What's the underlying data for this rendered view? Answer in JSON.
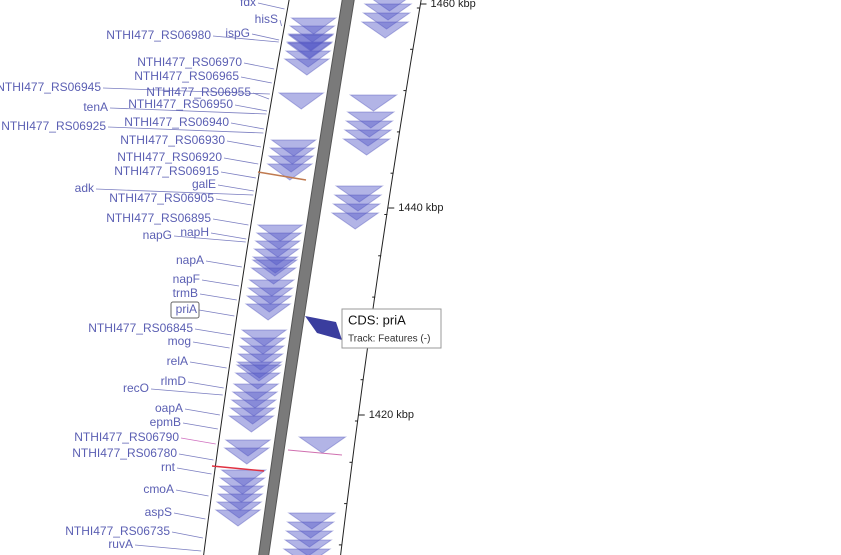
{
  "genes": [
    "fdx",
    "hisS",
    "NTHI477_RS06980",
    "ispG",
    "NTHI477_RS06970",
    "NTHI477_RS06965",
    "NTHI477_RS06945",
    "NTHI477_RS06955",
    "tenA",
    "NTHI477_RS06950",
    "NTHI477_RS06925",
    "NTHI477_RS06940",
    "NTHI477_RS06930",
    "NTHI477_RS06920",
    "NTHI477_RS06915",
    "adk",
    "galE",
    "NTHI477_RS06905",
    "NTHI477_RS06895",
    "napG",
    "napH",
    "napA",
    "napF",
    "trmB",
    "priA",
    "NTHI477_RS06845",
    "mog",
    "relA",
    "rlmD",
    "recO",
    "oapA",
    "epmB",
    "NTHI477_RS06790",
    "NTHI477_RS06780",
    "rnt",
    "cmoA",
    "aspS",
    "NTHI477_RS06735",
    "ruvA"
  ],
  "scale_ticks": [
    "1460 kbp",
    "1440 kbp",
    "1420 kbp"
  ],
  "tooltip": {
    "title": "CDS: priA",
    "track": "Track: Features (-)"
  }
}
